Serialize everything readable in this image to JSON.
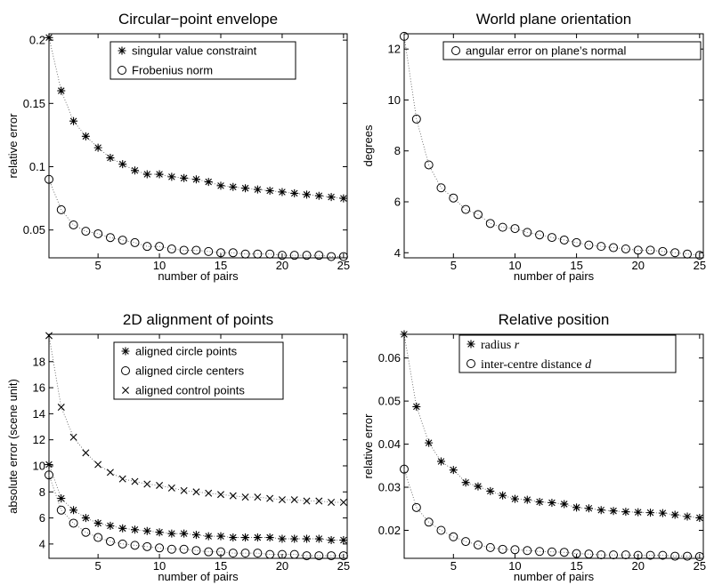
{
  "chart_data": [
    {
      "type": "scatter",
      "title": "Circular−point envelope",
      "xlabel": "number of pairs",
      "ylabel": "relative error",
      "xlim": [
        1,
        25.3
      ],
      "ylim": [
        0.028,
        0.205
      ],
      "xticks": [
        5,
        10,
        15,
        20,
        25
      ],
      "yticks": [
        0.05,
        0.1,
        0.15,
        0.2
      ],
      "yticklabels": [
        "0.05",
        "0.1",
        "0.15",
        "0.2"
      ],
      "legend_position": "top-right",
      "grid": false,
      "x": [
        1,
        2,
        3,
        4,
        5,
        6,
        7,
        8,
        9,
        10,
        11,
        12,
        13,
        14,
        15,
        16,
        17,
        18,
        19,
        20,
        21,
        22,
        23,
        24,
        25
      ],
      "series": [
        {
          "name": "singular value constraint",
          "marker": "asterisk",
          "values": [
            0.202,
            0.16,
            0.136,
            0.124,
            0.115,
            0.107,
            0.102,
            0.097,
            0.094,
            0.094,
            0.092,
            0.091,
            0.09,
            0.088,
            0.085,
            0.084,
            0.083,
            0.082,
            0.081,
            0.08,
            0.079,
            0.078,
            0.077,
            0.076,
            0.075
          ]
        },
        {
          "name": "Frobenius norm",
          "marker": "circle",
          "values": [
            0.09,
            0.066,
            0.054,
            0.049,
            0.047,
            0.044,
            0.042,
            0.04,
            0.037,
            0.037,
            0.035,
            0.034,
            0.034,
            0.033,
            0.032,
            0.032,
            0.031,
            0.031,
            0.031,
            0.03,
            0.03,
            0.03,
            0.03,
            0.029,
            0.029
          ]
        }
      ]
    },
    {
      "type": "scatter",
      "title": "World plane orientation",
      "xlabel": "number of pairs",
      "ylabel": "degrees",
      "xlim": [
        1,
        25.3
      ],
      "ylim": [
        3.8,
        12.6
      ],
      "xticks": [
        5,
        10,
        15,
        20,
        25
      ],
      "yticks": [
        4,
        6,
        8,
        10,
        12
      ],
      "yticklabels": [
        "4",
        "6",
        "8",
        "10",
        "12"
      ],
      "legend_position": "top-right",
      "grid": false,
      "x": [
        1,
        2,
        3,
        4,
        5,
        6,
        7,
        8,
        9,
        10,
        11,
        12,
        13,
        14,
        15,
        16,
        17,
        18,
        19,
        20,
        21,
        22,
        23,
        24,
        25
      ],
      "series": [
        {
          "name": "angular error on plane’s normal",
          "marker": "circle",
          "values": [
            12.5,
            9.25,
            7.45,
            6.55,
            6.15,
            5.7,
            5.5,
            5.15,
            5.0,
            4.95,
            4.8,
            4.7,
            4.6,
            4.5,
            4.4,
            4.3,
            4.25,
            4.2,
            4.15,
            4.1,
            4.1,
            4.05,
            4.0,
            3.95,
            3.9
          ]
        }
      ]
    },
    {
      "type": "scatter",
      "title": "2D alignment of points",
      "xlabel": "number of pairs",
      "ylabel": "absolute error (scene unit)",
      "xlim": [
        1,
        25.3
      ],
      "ylim": [
        2.9,
        20.1
      ],
      "xticks": [
        5,
        10,
        15,
        20,
        25
      ],
      "yticks": [
        4,
        6,
        8,
        10,
        12,
        14,
        16,
        18
      ],
      "yticklabels": [
        "4",
        "6",
        "8",
        "10",
        "12",
        "14",
        "16",
        "18"
      ],
      "legend_position": "top-right",
      "grid": false,
      "x": [
        1,
        2,
        3,
        4,
        5,
        6,
        7,
        8,
        9,
        10,
        11,
        12,
        13,
        14,
        15,
        16,
        17,
        18,
        19,
        20,
        21,
        22,
        23,
        24,
        25
      ],
      "series": [
        {
          "name": "aligned circle points",
          "marker": "asterisk",
          "values": [
            10.1,
            7.5,
            6.6,
            6.0,
            5.6,
            5.4,
            5.2,
            5.1,
            5.0,
            4.9,
            4.8,
            4.8,
            4.7,
            4.6,
            4.6,
            4.5,
            4.5,
            4.5,
            4.5,
            4.4,
            4.4,
            4.4,
            4.4,
            4.3,
            4.3
          ]
        },
        {
          "name": "aligned circle centers",
          "marker": "circle",
          "values": [
            9.3,
            6.6,
            5.6,
            4.9,
            4.5,
            4.2,
            4.0,
            3.9,
            3.8,
            3.7,
            3.6,
            3.6,
            3.5,
            3.4,
            3.4,
            3.3,
            3.3,
            3.3,
            3.2,
            3.2,
            3.2,
            3.1,
            3.1,
            3.1,
            3.1
          ]
        },
        {
          "name": "aligned control points",
          "marker": "x",
          "values": [
            20.0,
            14.5,
            12.2,
            11.0,
            10.1,
            9.5,
            9.0,
            8.8,
            8.6,
            8.5,
            8.3,
            8.1,
            8.0,
            7.9,
            7.8,
            7.7,
            7.6,
            7.6,
            7.5,
            7.4,
            7.4,
            7.3,
            7.3,
            7.2,
            7.2
          ]
        }
      ]
    },
    {
      "type": "scatter",
      "title": "Relative position",
      "xlabel": "number of pairs",
      "ylabel": "relative error",
      "xlim": [
        1,
        25.3
      ],
      "ylim": [
        0.0135,
        0.0655
      ],
      "xticks": [
        5,
        10,
        15,
        20,
        25
      ],
      "yticks": [
        0.02,
        0.03,
        0.04,
        0.05,
        0.06
      ],
      "yticklabels": [
        "0.02",
        "0.03",
        "0.04",
        "0.05",
        "0.06"
      ],
      "legend_position": "top-right",
      "grid": false,
      "x": [
        1,
        2,
        3,
        4,
        5,
        6,
        7,
        8,
        9,
        10,
        11,
        12,
        13,
        14,
        15,
        16,
        17,
        18,
        19,
        20,
        21,
        22,
        23,
        24,
        25
      ],
      "series": [
        {
          "name": "radius r",
          "legend_prefix": "radius ",
          "legend_math": "r",
          "marker": "asterisk",
          "values": [
            0.0655,
            0.0487,
            0.0403,
            0.036,
            0.034,
            0.0311,
            0.0302,
            0.0291,
            0.0281,
            0.0273,
            0.0271,
            0.0266,
            0.0264,
            0.0261,
            0.0253,
            0.0251,
            0.0247,
            0.0245,
            0.0243,
            0.0242,
            0.0241,
            0.024,
            0.0236,
            0.0232,
            0.0229
          ]
        },
        {
          "name": "inter-centre distance d",
          "legend_prefix": "inter-centre distance ",
          "legend_math": "d",
          "marker": "circle",
          "values": [
            0.0342,
            0.0253,
            0.0219,
            0.02,
            0.0185,
            0.0174,
            0.0166,
            0.016,
            0.0156,
            0.0155,
            0.0153,
            0.0151,
            0.015,
            0.0149,
            0.0146,
            0.0145,
            0.0143,
            0.0143,
            0.0143,
            0.0142,
            0.0142,
            0.0142,
            0.014,
            0.014,
            0.0139
          ]
        }
      ]
    }
  ]
}
